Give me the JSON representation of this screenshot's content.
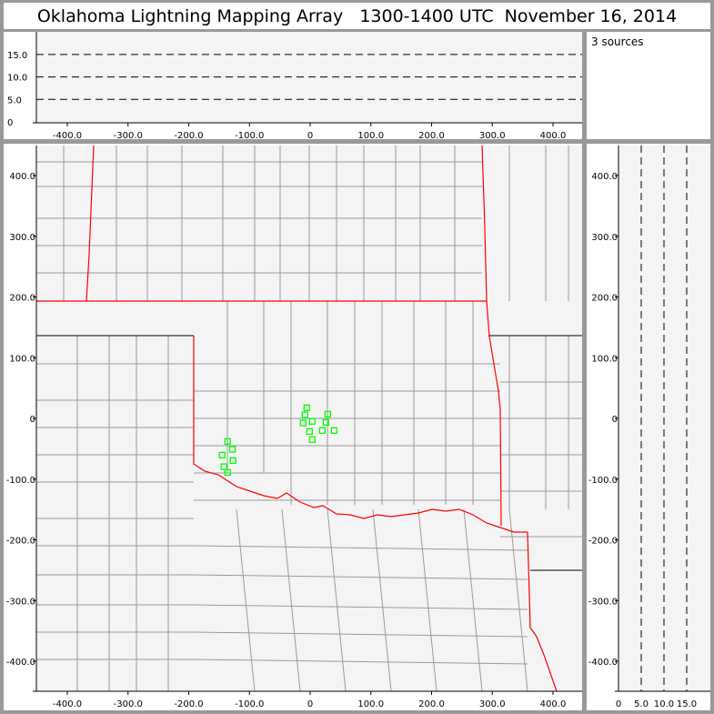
{
  "title": "Oklahoma Lightning Mapping Array   1300-1400 UTC  November 16, 2014",
  "source_count": "3 sources",
  "colors": {
    "background_panel": "#f4f4f4",
    "state_border": "#ff0000",
    "county_line": "#999999",
    "source_marker": "#00ff00",
    "frame": "#999999"
  },
  "top_panel": {
    "y_ticks": [
      "0",
      "5.0",
      "10.0",
      "15.0"
    ],
    "x_ticks": [
      "-400.0",
      "-300.0",
      "-200.0",
      "-100.0",
      "0",
      "100.0",
      "200.0",
      "300.0",
      "400.0"
    ]
  },
  "main_panel": {
    "x_ticks": [
      "-400.0",
      "-300.0",
      "-200.0",
      "-100.0",
      "0",
      "100.0",
      "200.0",
      "300.0",
      "400.0"
    ],
    "y_ticks": [
      "400.0",
      "300.0",
      "200.0",
      "100.0",
      "0",
      "-100.0",
      "-200.0",
      "-300.0",
      "-400.0"
    ]
  },
  "right_panel": {
    "x_ticks": [
      "0",
      "5.0",
      "10.0",
      "15.0"
    ],
    "y_ticks": [
      "400.0",
      "300.0",
      "200.0",
      "100.0",
      "0",
      "-100.0",
      "-200.0",
      "-300.0",
      "-400.0"
    ]
  },
  "sources_km": [
    [
      -5.5,
      17.5
    ],
    [
      -8.5,
      6
    ],
    [
      29,
      7
    ],
    [
      -11.5,
      -7.5
    ],
    [
      3.5,
      -5
    ],
    [
      26,
      -6.5
    ],
    [
      -1,
      -21.5
    ],
    [
      20,
      -20
    ],
    [
      39.5,
      -20
    ],
    [
      3.5,
      -35
    ],
    [
      -136,
      -38
    ],
    [
      -128,
      -51
    ],
    [
      -145,
      -60.5
    ],
    [
      -127,
      -69.5
    ],
    [
      -142,
      -79.5
    ],
    [
      -136,
      -89
    ]
  ]
}
